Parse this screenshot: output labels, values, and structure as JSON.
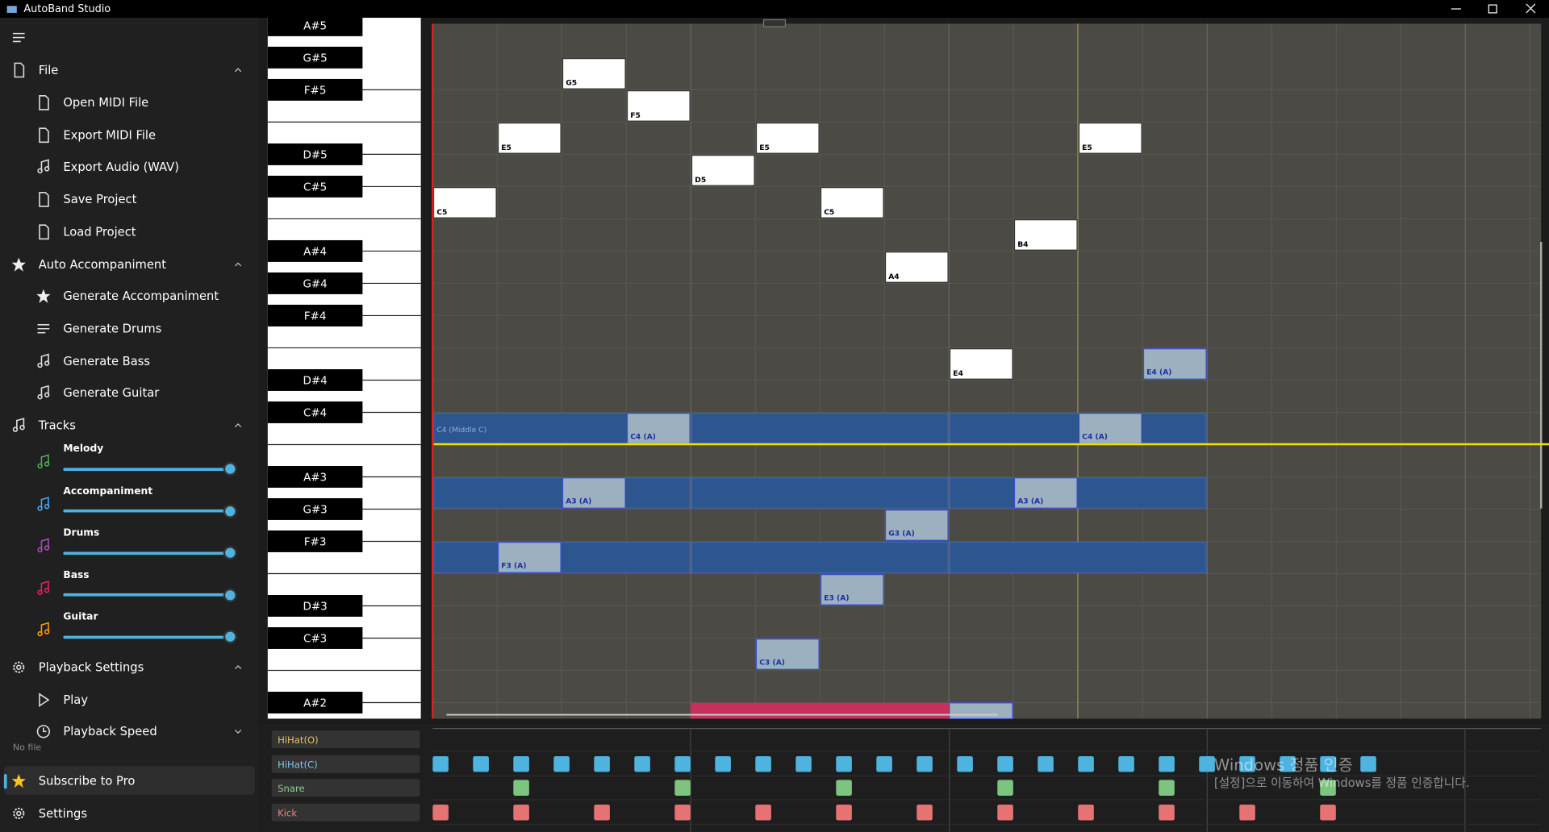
{
  "window": {
    "title": "AutoBand Studio"
  },
  "sidebar": {
    "sections": [
      {
        "label": "File",
        "items": [
          "Open MIDI File",
          "Export MIDI File",
          "Export Audio (WAV)",
          "Save Project",
          "Load Project"
        ]
      },
      {
        "label": "Auto Accompaniment",
        "items": [
          "Generate Accompaniment",
          "Generate Drums",
          "Generate Bass",
          "Generate Guitar"
        ]
      },
      {
        "label": "Tracks",
        "tracks": [
          "Melody",
          "Accompaniment",
          "Drums",
          "Bass",
          "Guitar"
        ]
      },
      {
        "label": "Playback Settings",
        "items": [
          "Play",
          "Playback Speed"
        ]
      }
    ],
    "status": "No file",
    "subscribe": "Subscribe to Pro",
    "settings": "Settings"
  },
  "piano": {
    "keys": [
      "A#5",
      "G#5",
      "F#5",
      "D#5",
      "C#5",
      "A#4",
      "G#4",
      "F#4",
      "D#4",
      "C#4",
      "A#3",
      "G#3",
      "F#3",
      "D#3",
      "C#3",
      "A#2"
    ]
  },
  "melody_notes": [
    "C5",
    "E5",
    "G5",
    "F5",
    "D5",
    "E5",
    "C5",
    "A4",
    "E4",
    "B4",
    "E5"
  ],
  "accompaniment": {
    "middle_c": "C4 (Middle C)",
    "notes": [
      "F3 (A)",
      "A3 (A)",
      "C4 (A)",
      "C3 (A)",
      "E3 (A)",
      "G3 (A)",
      "E4 (A)",
      "A3 (A)",
      "C4 (A)"
    ]
  },
  "drums": {
    "lanes": [
      "HiHat(O)",
      "HiHat(C)",
      "Snare",
      "Kick"
    ]
  },
  "watermark": {
    "title": "Windows 정품 인증",
    "text": "[설정]으로 이동하여 Windows를 정품 인증합니다."
  }
}
